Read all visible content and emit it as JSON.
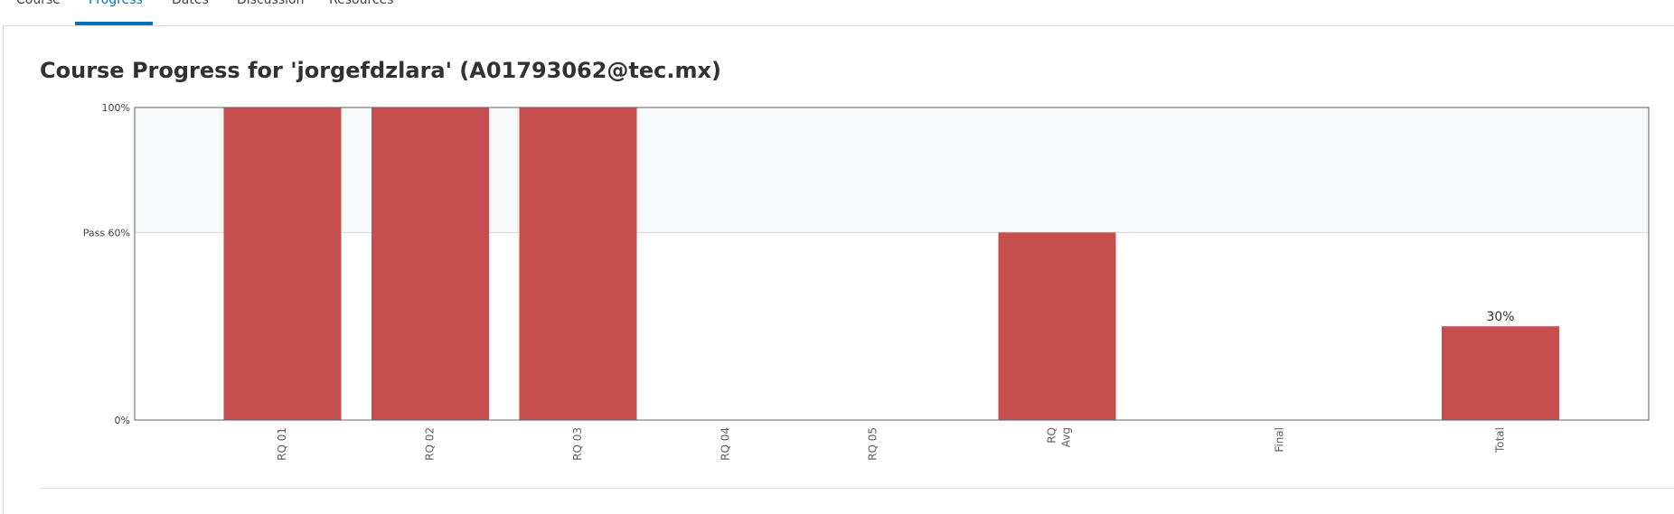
{
  "tabs": [
    {
      "label": "Course",
      "active": false
    },
    {
      "label": "Progress",
      "active": true
    },
    {
      "label": "Dates",
      "active": false
    },
    {
      "label": "Discussion",
      "active": false
    },
    {
      "label": "Resources",
      "active": false
    }
  ],
  "page": {
    "title": "Course Progress for 'jorgefdzlara' (A01793062@tec.mx)"
  },
  "colors": {
    "bar": "#c64e4f",
    "pass_band": "#f7f8fa",
    "axis": "#616161",
    "accent": "#0075b4"
  },
  "chart_data": {
    "type": "bar",
    "categories": [
      "RQ 01",
      "RQ 02",
      "RQ 03",
      "RQ 04",
      "RQ 05",
      "RQ Avg",
      "Final",
      "Total"
    ],
    "values": [
      100,
      100,
      100,
      0,
      0,
      60,
      0,
      30
    ],
    "ylim": [
      0,
      100
    ],
    "y_ticks": [
      {
        "value": 100,
        "label": "100%"
      },
      {
        "value": 60,
        "label": "Pass 60%"
      },
      {
        "value": 0,
        "label": "0%"
      }
    ],
    "pass_threshold": 60,
    "data_labels": [
      {
        "category": "Total",
        "label": "30%"
      }
    ],
    "xlabel": "",
    "ylabel": ""
  }
}
